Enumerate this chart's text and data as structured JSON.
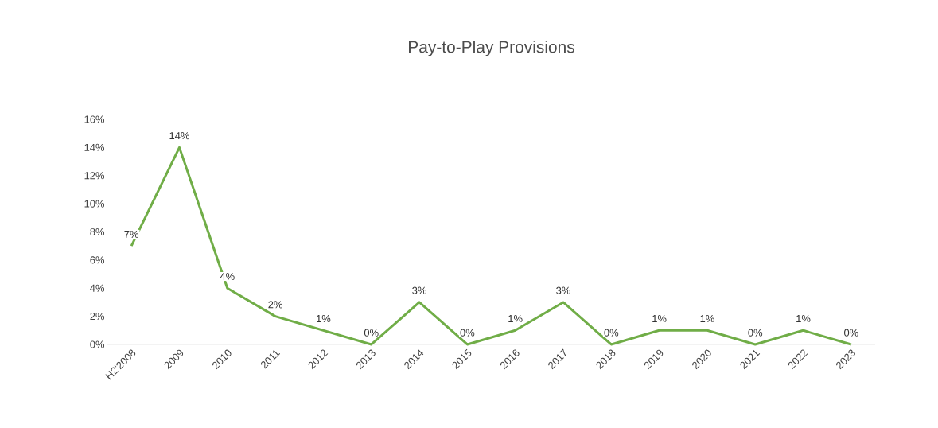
{
  "chart_data": {
    "type": "line",
    "title": "Pay-to-Play Provisions",
    "categories": [
      "H2'2008",
      "2009",
      "2010",
      "2011",
      "2012",
      "2013",
      "2014",
      "2015",
      "2016",
      "2017",
      "2018",
      "2019",
      "2020",
      "2021",
      "2022",
      "2023"
    ],
    "values": [
      7,
      14,
      4,
      2,
      1,
      0,
      3,
      0,
      1,
      3,
      0,
      1,
      1,
      0,
      1,
      0
    ],
    "value_labels": [
      "7%",
      "14%",
      "4%",
      "2%",
      "1%",
      "0%",
      "3%",
      "0%",
      "1%",
      "3%",
      "0%",
      "1%",
      "1%",
      "0%",
      "1%",
      "0%"
    ],
    "color": "#70ad47",
    "ylim": [
      0,
      16
    ],
    "yticks": [
      {
        "value": 0,
        "label": "0%"
      },
      {
        "value": 2,
        "label": "2%"
      },
      {
        "value": 4,
        "label": "4%"
      },
      {
        "value": 6,
        "label": "6%"
      },
      {
        "value": 8,
        "label": "8%"
      },
      {
        "value": 10,
        "label": "10%"
      },
      {
        "value": 12,
        "label": "12%"
      },
      {
        "value": 14,
        "label": "14%"
      },
      {
        "value": 16,
        "label": "16%"
      }
    ],
    "grid": false,
    "marker": "none",
    "line_style": "solid"
  }
}
